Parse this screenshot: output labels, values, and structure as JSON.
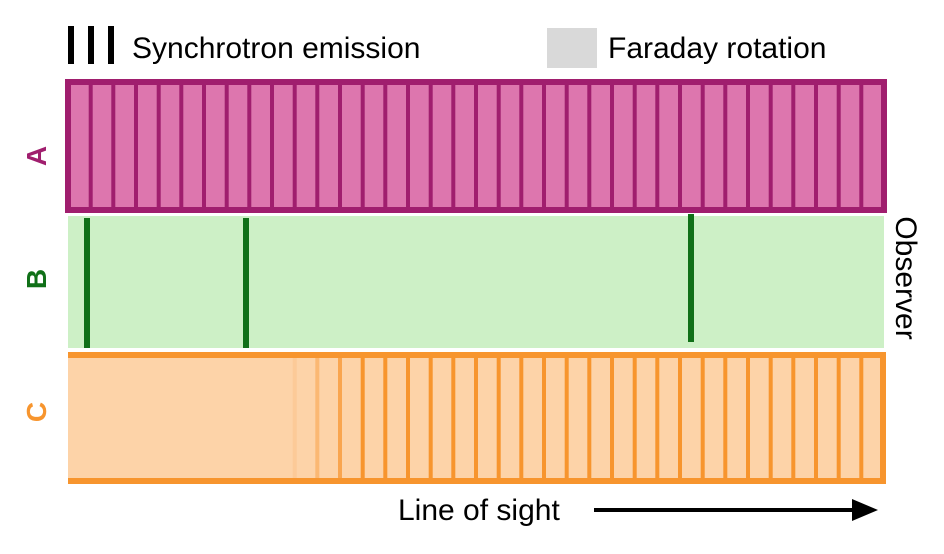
{
  "legend": {
    "synchrotron": {
      "label": "Synchrotron emission",
      "icon": "vertical-bars-icon",
      "color": "#000000"
    },
    "faraday": {
      "label": "Faraday rotation",
      "icon": "grey-square-icon",
      "color": "#d9d9d9"
    }
  },
  "panels": [
    {
      "id": "A",
      "label": "A",
      "fill": "#dd76ae",
      "stroke": "#a01e6e",
      "description_text": "",
      "emission": "uniform"
    },
    {
      "id": "B",
      "label": "B",
      "fill": "#cdf0c6",
      "stroke": "#107018",
      "emission": "discrete"
    },
    {
      "id": "C",
      "label": "C",
      "fill": "#fdd3a8",
      "stroke": "#f7952e",
      "emission": "partial"
    }
  ],
  "observer_label": "Observer",
  "axis": {
    "label": "Line of sight",
    "arrow_icon": "right-arrow-icon"
  }
}
